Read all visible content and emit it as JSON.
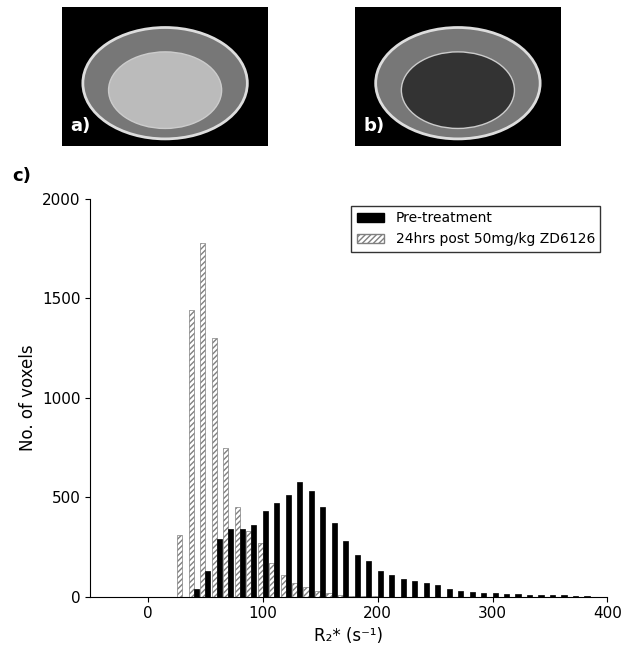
{
  "panel_labels": [
    "a)",
    "b)",
    "c)"
  ],
  "chart_data": {
    "type": "bar",
    "x_label": "R₂* (s⁻¹)",
    "y_label": "No. of voxels",
    "x": [
      30,
      40,
      50,
      60,
      70,
      80,
      90,
      100,
      110,
      120,
      130,
      140,
      150,
      160,
      170,
      180,
      190,
      200,
      210,
      220,
      230,
      240,
      250,
      260,
      270,
      280,
      290,
      300,
      310,
      320,
      330,
      340,
      350,
      360,
      370,
      380
    ],
    "series": [
      {
        "name": "Pre-treatment",
        "color": "#000000",
        "values": [
          0,
          40,
          130,
          290,
          340,
          340,
          360,
          430,
          470,
          510,
          575,
          530,
          450,
          370,
          280,
          210,
          180,
          130,
          110,
          90,
          80,
          70,
          60,
          40,
          30,
          25,
          20,
          20,
          15,
          15,
          10,
          10,
          10,
          8,
          5,
          5
        ]
      },
      {
        "name": "24hrs post 50mg/kg ZD6126",
        "color": "#808080",
        "values": [
          310,
          1440,
          1780,
          1300,
          750,
          450,
          330,
          270,
          170,
          110,
          70,
          50,
          30,
          20,
          10,
          5,
          5,
          5,
          0,
          0,
          0,
          0,
          0,
          0,
          0,
          0,
          0,
          0,
          0,
          0,
          0,
          0,
          0,
          0,
          0,
          0
        ]
      }
    ],
    "xlim": [
      -50,
      400
    ],
    "xticks": [
      0,
      100,
      200,
      300,
      400
    ],
    "ylim": [
      0,
      2000
    ],
    "yticks": [
      0,
      500,
      1000,
      1500,
      2000
    ],
    "grid": false,
    "legend": "upper right"
  }
}
